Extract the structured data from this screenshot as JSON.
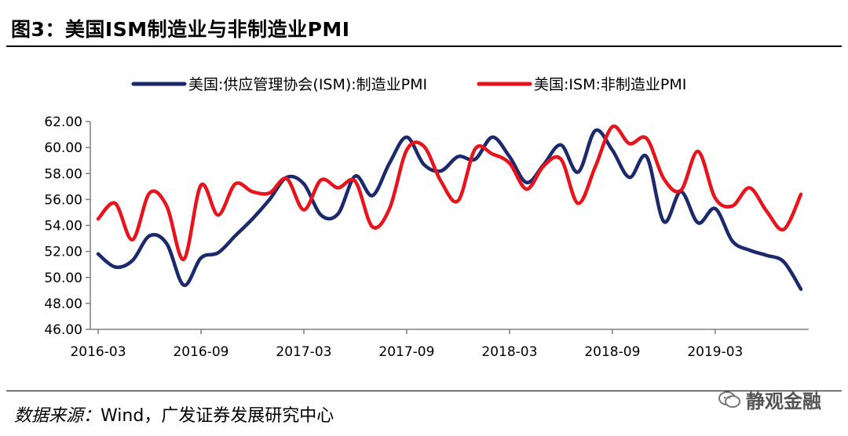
{
  "header": {
    "title": "图3：美国ISM制造业与非制造业PMI"
  },
  "footer": {
    "source_label": "数据来源：",
    "source_text": "Wind，广发证券发展研究中心",
    "watermark": "静观金融"
  },
  "colors": {
    "manufacturing": "#1a2a6c",
    "non_manufacturing": "#e8141c",
    "axis": "#7f7f7f"
  },
  "chart_data": {
    "type": "line",
    "title": "",
    "xlabel": "",
    "ylabel": "",
    "ylim": [
      46,
      62
    ],
    "yticks": [
      "46.00",
      "48.00",
      "50.00",
      "52.00",
      "54.00",
      "56.00",
      "58.00",
      "60.00",
      "62.00"
    ],
    "xtick_labels": [
      "2016-03",
      "2016-09",
      "2017-03",
      "2017-09",
      "2018-03",
      "2018-09",
      "2019-03"
    ],
    "xtick_index": [
      0,
      6,
      12,
      18,
      24,
      30,
      36
    ],
    "categories": [
      "2016-03",
      "2016-04",
      "2016-05",
      "2016-06",
      "2016-07",
      "2016-08",
      "2016-09",
      "2016-10",
      "2016-11",
      "2016-12",
      "2017-01",
      "2017-02",
      "2017-03",
      "2017-04",
      "2017-05",
      "2017-06",
      "2017-07",
      "2017-08",
      "2017-09",
      "2017-10",
      "2017-11",
      "2017-12",
      "2018-01",
      "2018-02",
      "2018-03",
      "2018-04",
      "2018-05",
      "2018-06",
      "2018-07",
      "2018-08",
      "2018-09",
      "2018-10",
      "2018-11",
      "2018-12",
      "2019-01",
      "2019-02",
      "2019-03",
      "2019-04",
      "2019-05",
      "2019-06",
      "2019-07",
      "2019-08"
    ],
    "legend_position": "top",
    "series": [
      {
        "name": "美国:供应管理协会(ISM):制造业PMI",
        "color_key": "manufacturing",
        "values": [
          51.8,
          50.8,
          51.3,
          53.2,
          52.6,
          49.4,
          51.5,
          51.9,
          53.2,
          54.5,
          56.0,
          57.7,
          57.2,
          54.8,
          54.9,
          57.8,
          56.3,
          58.8,
          60.8,
          58.7,
          58.2,
          59.3,
          59.1,
          60.8,
          59.3,
          57.3,
          58.7,
          60.2,
          58.1,
          61.3,
          59.8,
          57.7,
          59.3,
          54.3,
          56.6,
          54.2,
          55.3,
          52.8,
          52.1,
          51.7,
          51.2,
          49.1
        ]
      },
      {
        "name": "美国:ISM:非制造业PMI",
        "color_key": "non_manufacturing",
        "values": [
          54.5,
          55.7,
          52.9,
          56.5,
          55.5,
          51.4,
          57.1,
          54.8,
          57.2,
          56.6,
          56.5,
          57.6,
          55.2,
          57.5,
          56.9,
          57.4,
          53.9,
          55.3,
          59.8,
          60.1,
          57.4,
          55.9,
          59.9,
          59.5,
          58.8,
          56.8,
          58.6,
          59.1,
          55.7,
          58.5,
          61.6,
          60.3,
          60.7,
          57.6,
          56.7,
          59.7,
          56.1,
          55.5,
          56.9,
          55.1,
          53.7,
          56.4
        ]
      }
    ]
  }
}
